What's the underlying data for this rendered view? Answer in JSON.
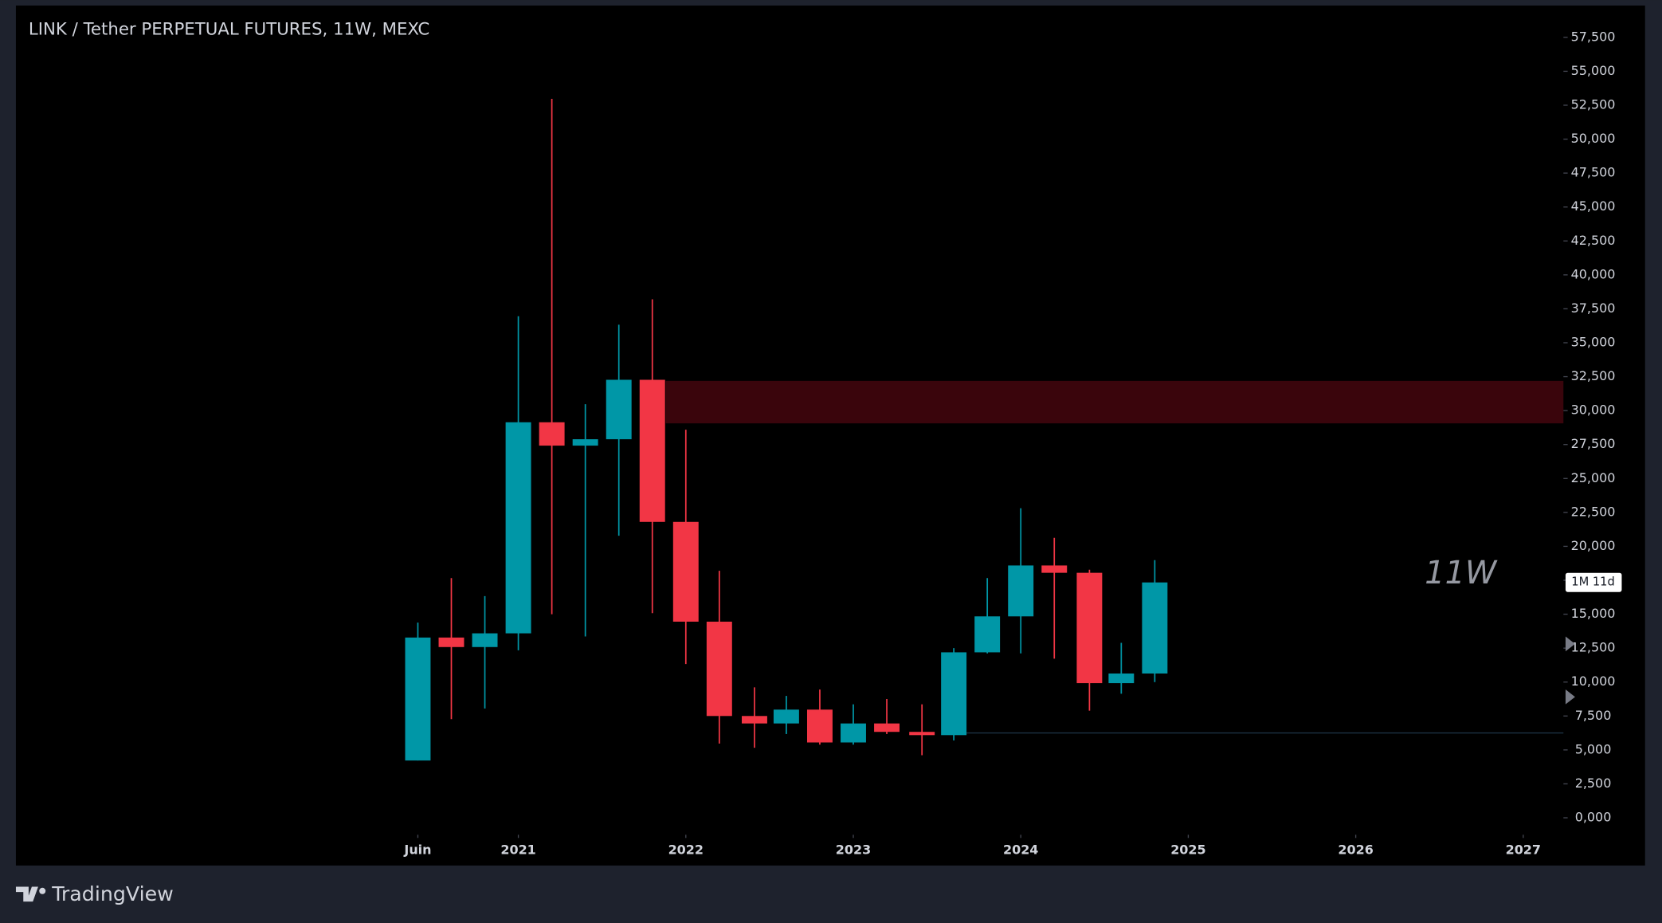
{
  "chart_data": {
    "type": "candlestick",
    "title": "LINK / Tether PERPETUAL FUTURES, 11W, MEXC",
    "watermark": "11W",
    "countdown": "1M 11d",
    "up_color": "#0097a7",
    "down_color": "#f23645",
    "x": [
      2020.4,
      2020.6,
      2020.8,
      2021.0,
      2021.2,
      2021.4,
      2021.6,
      2021.8,
      2022.0,
      2022.2,
      2022.41,
      2022.6,
      2022.8,
      2023.0,
      2023.2,
      2023.41,
      2023.6,
      2023.8,
      2024.0,
      2024.2,
      2024.41,
      2024.6,
      2024.8
    ],
    "open": [
      4.22,
      13.28,
      12.58,
      13.59,
      29.14,
      27.42,
      27.89,
      32.27,
      21.8,
      14.45,
      7.5,
      6.95,
      7.97,
      5.55,
      6.95,
      6.33,
      6.09,
      12.19,
      14.84,
      18.59,
      18.05,
      9.92,
      10.63
    ],
    "high": [
      14.38,
      17.66,
      16.33,
      36.95,
      52.97,
      30.47,
      36.33,
      38.2,
      28.59,
      18.2,
      9.61,
      8.98,
      9.45,
      8.36,
      8.75,
      8.36,
      12.5,
      17.66,
      22.81,
      20.63,
      18.28,
      12.89,
      18.98
    ],
    "low": [
      4.22,
      7.27,
      8.05,
      12.34,
      15.0,
      13.36,
      20.78,
      15.08,
      11.33,
      5.47,
      5.16,
      6.17,
      5.39,
      5.39,
      6.17,
      4.61,
      5.7,
      12.11,
      12.11,
      11.72,
      7.89,
      9.14,
      10.0
    ],
    "close": [
      13.28,
      12.58,
      13.59,
      29.14,
      27.42,
      27.89,
      32.27,
      21.8,
      14.45,
      7.5,
      6.95,
      7.97,
      5.55,
      6.95,
      6.33,
      6.09,
      12.19,
      14.84,
      18.59,
      18.05,
      9.92,
      10.63,
      17.34
    ],
    "zones": [
      {
        "x_start": 2021.88,
        "low": 29.06,
        "high": 32.19,
        "color": "#3a050c"
      }
    ],
    "hlines": [
      {
        "x_start": 2023.6,
        "value": 6.25,
        "color": "#1c3344"
      }
    ],
    "xlim": [
      2018.0,
      2027.24
    ],
    "ylim": [
      0,
      57.5
    ],
    "xticks": [
      {
        "value": 2020.4,
        "label": "Juin"
      },
      2021,
      2022,
      2023,
      2024,
      2025,
      2026,
      2027
    ],
    "yticks": [
      {
        "value": 0,
        "label": "0,000"
      },
      {
        "value": 2.5,
        "label": "2,500"
      },
      {
        "value": 5,
        "label": "5,000"
      },
      {
        "value": 7.5,
        "label": "7,500"
      },
      {
        "value": 10,
        "label": "10,000"
      },
      {
        "value": 12.5,
        "label": "12,500"
      },
      {
        "value": 15,
        "label": "15,000"
      },
      {
        "value": 17.5,
        "label": "17,500"
      },
      {
        "value": 20,
        "label": "20,000"
      },
      {
        "value": 22.5,
        "label": "22,500"
      },
      {
        "value": 25,
        "label": "25,000"
      },
      {
        "value": 27.5,
        "label": "27,500"
      },
      {
        "value": 30,
        "label": "30,000"
      },
      {
        "value": 32.5,
        "label": "32,500"
      },
      {
        "value": 35,
        "label": "35,000"
      },
      {
        "value": 37.5,
        "label": "37,500"
      },
      {
        "value": 40,
        "label": "40,000"
      },
      {
        "value": 42.5,
        "label": "42,500"
      },
      {
        "value": 45,
        "label": "45,000"
      },
      {
        "value": 47.5,
        "label": "47,500"
      },
      {
        "value": 50,
        "label": "50,000"
      },
      {
        "value": 52.5,
        "label": "52,500"
      },
      {
        "value": 55,
        "label": "55,000"
      },
      {
        "value": 57.5,
        "label": "57,500"
      }
    ]
  },
  "footer": {
    "brand": "TradingView"
  }
}
